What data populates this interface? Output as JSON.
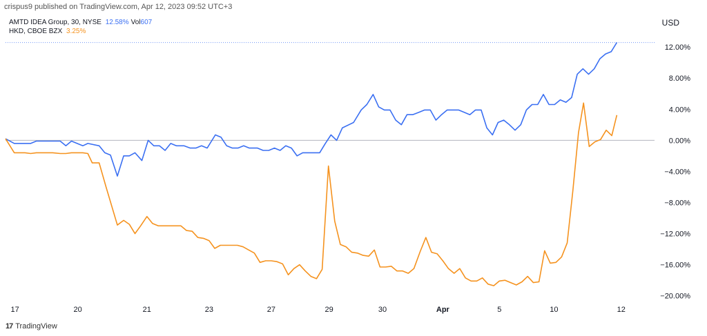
{
  "header": {
    "published": "crispus9 published on TradingView.com, Apr 12, 2023 09:52 UTC+3"
  },
  "legend": {
    "s1_name": "AMTD IDEA Group, 30, NYSE",
    "s1_value": "12.58%",
    "s1_vol_label": "Vol",
    "s1_vol": "607",
    "s2_name": "HKD, CBOE BZX",
    "s2_value": "3.25%"
  },
  "currency": "USD",
  "brand": {
    "logo": "17",
    "label": "TradingView"
  },
  "colors": {
    "s1": "#3a6ff2",
    "s2": "#f5921e",
    "baseline": "#b2b5be",
    "price_line": "#4a7bf5"
  },
  "chart_data": {
    "type": "line",
    "ylim": [
      -21,
      14.5
    ],
    "xlim": [
      0,
      100
    ],
    "y_ticks": [
      12,
      8,
      4,
      0,
      -4,
      -8,
      -12,
      -16,
      -20
    ],
    "y_tick_labels": [
      "12.00%",
      "8.00%",
      "4.00%",
      "0.00%",
      "−4.00%",
      "−8.00%",
      "−12.00%",
      "−16.00%",
      "−20.00%"
    ],
    "x_ticks": [
      {
        "label": "17",
        "x": 1.5,
        "bold": false
      },
      {
        "label": "20",
        "x": 11.5,
        "bold": false
      },
      {
        "label": "21",
        "x": 22.5,
        "bold": false
      },
      {
        "label": "23",
        "x": 32.4,
        "bold": false
      },
      {
        "label": "27",
        "x": 42.3,
        "bold": false
      },
      {
        "label": "29",
        "x": 51.5,
        "bold": false
      },
      {
        "label": "30",
        "x": 60.0,
        "bold": false
      },
      {
        "label": "Apr",
        "x": 69.6,
        "bold": true
      },
      {
        "label": "5",
        "x": 78.6,
        "bold": false
      },
      {
        "label": "10",
        "x": 87.3,
        "bold": false
      },
      {
        "label": "12",
        "x": 98.0,
        "bold": false
      }
    ],
    "series": [
      {
        "name": "AMTD IDEA Group, 30, NYSE",
        "color": "#3a6ff2",
        "last_value": 12.58,
        "points": [
          [
            0,
            0.2
          ],
          [
            1.4,
            -0.4
          ],
          [
            3.1,
            -0.4
          ],
          [
            4.0,
            -0.4
          ],
          [
            4.9,
            -0.1
          ],
          [
            7.5,
            -0.1
          ],
          [
            8.7,
            -0.1
          ],
          [
            9.6,
            -0.7
          ],
          [
            10.5,
            -0.1
          ],
          [
            11.4,
            -0.4
          ],
          [
            12.3,
            -0.7
          ],
          [
            13.1,
            -0.4
          ],
          [
            14.9,
            -0.7
          ],
          [
            15.8,
            -1.6
          ],
          [
            16.7,
            -1.9
          ],
          [
            17.8,
            -4.6
          ],
          [
            18.8,
            -2.0
          ],
          [
            19.7,
            -2.0
          ],
          [
            20.6,
            -1.6
          ],
          [
            21.7,
            -2.6
          ],
          [
            22.7,
            0.0
          ],
          [
            23.6,
            -0.7
          ],
          [
            24.5,
            -0.7
          ],
          [
            25.4,
            -1.3
          ],
          [
            26.3,
            -0.4
          ],
          [
            27.2,
            -0.7
          ],
          [
            28.4,
            -0.7
          ],
          [
            29.4,
            -1.0
          ],
          [
            30.3,
            -1.0
          ],
          [
            31.2,
            -0.7
          ],
          [
            32.1,
            -1.0
          ],
          [
            33.4,
            0.7
          ],
          [
            34.3,
            0.4
          ],
          [
            35.2,
            -0.7
          ],
          [
            36.1,
            -1.0
          ],
          [
            37.0,
            -1.0
          ],
          [
            37.9,
            -0.7
          ],
          [
            38.8,
            -1.0
          ],
          [
            40.1,
            -1.0
          ],
          [
            41.0,
            -1.3
          ],
          [
            41.9,
            -1.3
          ],
          [
            42.8,
            -1.0
          ],
          [
            43.7,
            -1.3
          ],
          [
            44.6,
            -0.7
          ],
          [
            45.5,
            -1.0
          ],
          [
            46.4,
            -2.0
          ],
          [
            47.3,
            -1.6
          ],
          [
            49.1,
            -1.6
          ],
          [
            50.0,
            -1.6
          ],
          [
            50.9,
            -0.4
          ],
          [
            51.8,
            0.7
          ],
          [
            52.7,
            0.0
          ],
          [
            53.6,
            1.6
          ],
          [
            55.4,
            2.3
          ],
          [
            56.6,
            3.9
          ],
          [
            57.5,
            4.6
          ],
          [
            58.5,
            5.9
          ],
          [
            59.4,
            4.3
          ],
          [
            60.3,
            3.9
          ],
          [
            61.2,
            3.9
          ],
          [
            62.1,
            2.6
          ],
          [
            63.0,
            2.0
          ],
          [
            63.9,
            3.3
          ],
          [
            64.8,
            3.3
          ],
          [
            65.8,
            3.6
          ],
          [
            66.7,
            3.9
          ],
          [
            67.6,
            3.9
          ],
          [
            68.5,
            2.6
          ],
          [
            69.4,
            3.3
          ],
          [
            70.3,
            3.9
          ],
          [
            72.1,
            3.9
          ],
          [
            73.0,
            3.6
          ],
          [
            73.9,
            3.3
          ],
          [
            74.8,
            3.9
          ],
          [
            75.7,
            3.9
          ],
          [
            76.6,
            1.6
          ],
          [
            77.5,
            0.7
          ],
          [
            78.4,
            2.3
          ],
          [
            79.3,
            2.6
          ],
          [
            80.2,
            2.0
          ],
          [
            81.1,
            1.3
          ],
          [
            82.0,
            2.0
          ],
          [
            82.9,
            3.9
          ],
          [
            83.8,
            4.6
          ],
          [
            84.7,
            4.6
          ],
          [
            85.6,
            5.9
          ],
          [
            86.5,
            4.6
          ],
          [
            87.4,
            4.6
          ],
          [
            88.3,
            5.2
          ],
          [
            89.2,
            4.9
          ],
          [
            90.1,
            5.5
          ],
          [
            91.0,
            8.5
          ],
          [
            91.9,
            9.2
          ],
          [
            92.8,
            8.5
          ],
          [
            93.7,
            9.2
          ],
          [
            94.6,
            10.5
          ],
          [
            95.5,
            11.1
          ],
          [
            96.4,
            11.4
          ],
          [
            97.3,
            12.58
          ]
        ]
      },
      {
        "name": "HKD, CBOE BZX",
        "color": "#f5921e",
        "last_value": 3.25,
        "points": [
          [
            0,
            0.2
          ],
          [
            1.4,
            -1.6
          ],
          [
            3.1,
            -1.6
          ],
          [
            4.0,
            -1.7
          ],
          [
            4.9,
            -1.6
          ],
          [
            7.5,
            -1.6
          ],
          [
            8.7,
            -1.7
          ],
          [
            9.6,
            -1.7
          ],
          [
            10.5,
            -1.6
          ],
          [
            11.4,
            -1.6
          ],
          [
            12.3,
            -1.6
          ],
          [
            13.1,
            -1.7
          ],
          [
            13.8,
            -2.9
          ],
          [
            14.9,
            -2.9
          ],
          [
            16.0,
            -6.0
          ],
          [
            17.8,
            -10.9
          ],
          [
            18.8,
            -10.3
          ],
          [
            19.7,
            -10.8
          ],
          [
            20.6,
            -12.0
          ],
          [
            21.5,
            -11.0
          ],
          [
            22.5,
            -9.8
          ],
          [
            23.4,
            -10.7
          ],
          [
            24.3,
            -11.0
          ],
          [
            25.2,
            -11.0
          ],
          [
            26.1,
            -11.0
          ],
          [
            27.0,
            -11.0
          ],
          [
            27.9,
            -11.0
          ],
          [
            28.8,
            -11.6
          ],
          [
            29.7,
            -11.7
          ],
          [
            30.6,
            -12.5
          ],
          [
            31.5,
            -12.6
          ],
          [
            32.4,
            -12.9
          ],
          [
            33.3,
            -13.9
          ],
          [
            34.2,
            -13.5
          ],
          [
            35.1,
            -13.5
          ],
          [
            36.9,
            -13.5
          ],
          [
            37.8,
            -13.7
          ],
          [
            38.7,
            -14.1
          ],
          [
            39.6,
            -14.5
          ],
          [
            40.5,
            -15.7
          ],
          [
            41.4,
            -15.5
          ],
          [
            42.3,
            -15.5
          ],
          [
            43.2,
            -15.6
          ],
          [
            44.1,
            -15.9
          ],
          [
            45.0,
            -17.3
          ],
          [
            45.9,
            -16.5
          ],
          [
            46.8,
            -16.0
          ],
          [
            47.7,
            -16.8
          ],
          [
            48.6,
            -17.5
          ],
          [
            49.5,
            -17.8
          ],
          [
            50.4,
            -16.6
          ],
          [
            51.4,
            -3.3
          ],
          [
            52.4,
            -10.4
          ],
          [
            53.3,
            -13.4
          ],
          [
            54.2,
            -13.7
          ],
          [
            55.1,
            -14.4
          ],
          [
            56.0,
            -14.5
          ],
          [
            56.9,
            -14.8
          ],
          [
            57.8,
            -14.9
          ],
          [
            58.7,
            -14.1
          ],
          [
            59.6,
            -16.3
          ],
          [
            60.5,
            -16.3
          ],
          [
            61.4,
            -16.2
          ],
          [
            62.3,
            -16.8
          ],
          [
            63.2,
            -16.8
          ],
          [
            64.1,
            -17.1
          ],
          [
            65.0,
            -16.5
          ],
          [
            66.0,
            -14.3
          ],
          [
            66.9,
            -12.5
          ],
          [
            67.8,
            -14.4
          ],
          [
            68.7,
            -14.6
          ],
          [
            69.6,
            -15.5
          ],
          [
            70.5,
            -16.5
          ],
          [
            71.4,
            -17.1
          ],
          [
            72.3,
            -16.5
          ],
          [
            73.2,
            -17.7
          ],
          [
            74.1,
            -18.1
          ],
          [
            75.0,
            -18.1
          ],
          [
            75.9,
            -17.7
          ],
          [
            76.8,
            -18.5
          ],
          [
            77.7,
            -18.7
          ],
          [
            78.6,
            -18.1
          ],
          [
            79.5,
            -18.0
          ],
          [
            80.4,
            -18.3
          ],
          [
            81.3,
            -18.6
          ],
          [
            82.2,
            -18.2
          ],
          [
            83.1,
            -17.5
          ],
          [
            84.0,
            -18.3
          ],
          [
            84.9,
            -18.2
          ],
          [
            85.8,
            -14.2
          ],
          [
            86.7,
            -15.8
          ],
          [
            87.6,
            -15.7
          ],
          [
            88.5,
            -15.0
          ],
          [
            89.4,
            -13.2
          ],
          [
            90.3,
            -6.5
          ],
          [
            91.2,
            1.0
          ],
          [
            92.0,
            4.8
          ],
          [
            92.9,
            -0.8
          ],
          [
            93.8,
            -0.2
          ],
          [
            94.7,
            0.1
          ],
          [
            95.6,
            1.3
          ],
          [
            96.5,
            0.6
          ],
          [
            97.3,
            3.25
          ]
        ]
      }
    ]
  }
}
